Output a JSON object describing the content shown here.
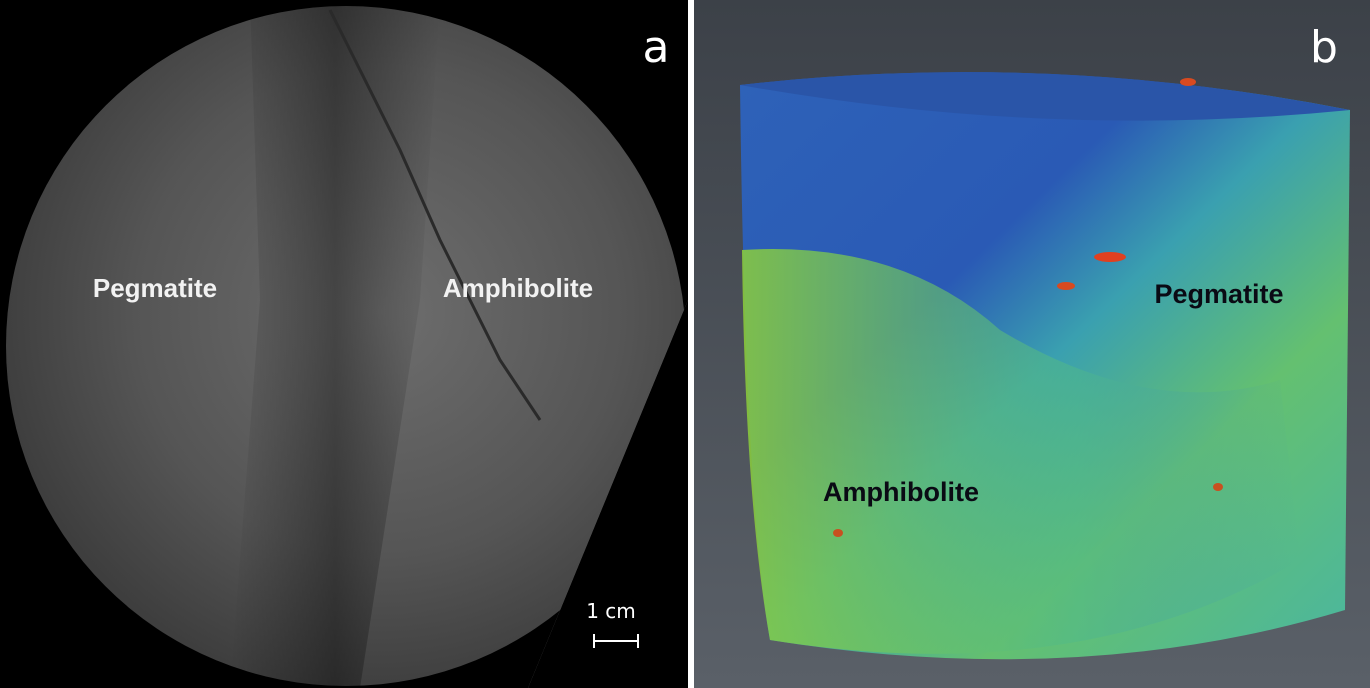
{
  "panels": [
    {
      "label": "a",
      "annotations": [
        "Pegmatite",
        "Amphibolite"
      ],
      "scale_bar": "1 cm"
    },
    {
      "label": "b",
      "annotations": [
        "Pegmatite",
        "Amphibolite"
      ]
    }
  ]
}
